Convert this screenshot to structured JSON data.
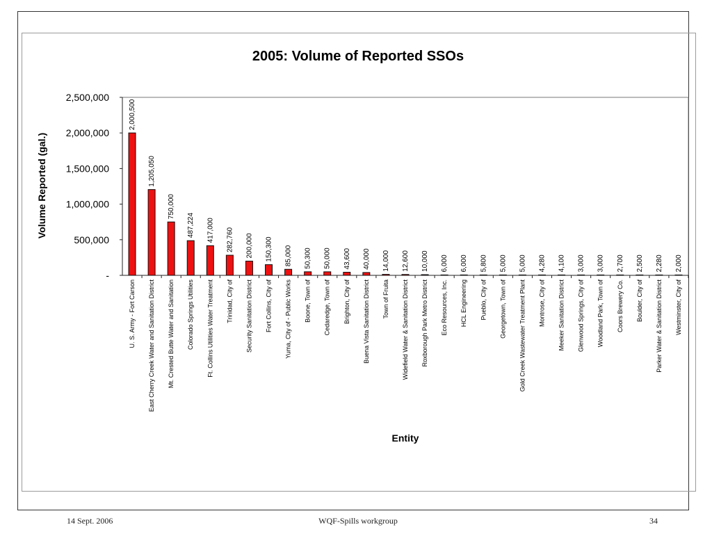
{
  "footer": {
    "date": "14 Sept. 2006",
    "center": "WQF-Spills workgroup",
    "page": "34"
  },
  "colors": {
    "bar_fill": "#ee1111",
    "bar_stroke": "#111111",
    "axis": "#222222"
  },
  "chart_data": {
    "type": "bar",
    "title": "2005:  Volume of Reported SSOs",
    "xlabel": "Entity",
    "ylabel": "Volume Reported (gal.)",
    "ylim": [
      0,
      2500000
    ],
    "yticks": [
      0,
      500000,
      1000000,
      1500000,
      2000000,
      2500000
    ],
    "ytick_labels": [
      "-",
      "500,000",
      "1,000,000",
      "1,500,000",
      "2,000,000",
      "2,500,000"
    ],
    "grid": false,
    "categories": [
      "U. S. Army - Fort Carson",
      "East Cherry Creek Water and Sanitation District",
      "Mt. Crested Butte Water and Sanitation",
      "Colorado Springs Utilities",
      "Ft. Collins Utilities Water Treatment",
      "Trinidad, City of",
      "Security Sanitation District",
      "Fort Collins, City of",
      "Yuma, City of - Public Works",
      "Boone, Town of",
      "Cedaredge, Town of",
      "Brighton, City of",
      "Buena Vista Sanitation District",
      "Town of Fruita",
      "Widefield Water & Sanitation District",
      "Roxborough Park Metro District",
      "Eco Resources, Inc.",
      "HCL Engineering",
      "Pueblo, City of",
      "Georgetown, Town of",
      "Gold Creek Wastewater Treatment Plant",
      "Montrose, City of",
      "Meeker Sanitation District",
      "Glenwood Springs, City of",
      "Woodland Park, Town of",
      "Coors Brewery Co.",
      "Boulder, City of",
      "Parker Water & Sanitation District",
      "Westminster, City of"
    ],
    "values": [
      2000500,
      1205050,
      750000,
      487224,
      417000,
      282760,
      200000,
      150300,
      85000,
      50300,
      50000,
      43600,
      40000,
      14000,
      12600,
      10000,
      6000,
      6000,
      5800,
      5000,
      5000,
      4280,
      4100,
      3000,
      3000,
      2700,
      2500,
      2280,
      2000
    ],
    "value_labels": [
      "2,000,500",
      "1,205,050",
      "750,000",
      "487,224",
      "417,000",
      "282,760",
      "200,000",
      "150,300",
      "85,000",
      "50,300",
      "50,000",
      "43,600",
      "40,000",
      "14,000",
      "12,600",
      "10,000",
      "6,000",
      "6,000",
      "5,800",
      "5,000",
      "5,000",
      "4,280",
      "4,100",
      "3,000",
      "3,000",
      "2,700",
      "2,500",
      "2,280",
      "2,000"
    ]
  }
}
